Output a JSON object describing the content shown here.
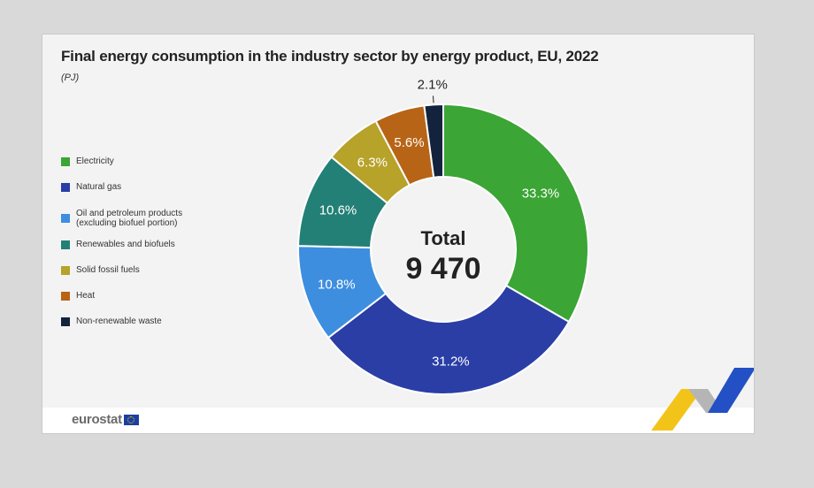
{
  "chart_data": {
    "type": "pie",
    "title": "Final energy consumption in the industry sector by energy product, EU, 2022",
    "subtitle": "(PJ)",
    "center_label": "Total",
    "center_value": "9 470",
    "categories": [
      "Electricity",
      "Natural gas",
      "Oil and petroleum products\n(excluding biofuel portion)",
      "Renewables and biofuels",
      "Solid fossil fuels",
      "Heat",
      "Non-renewable waste"
    ],
    "values": [
      33.3,
      31.2,
      10.8,
      10.6,
      6.3,
      5.6,
      2.1
    ],
    "value_labels": [
      "33.3%",
      "31.2%",
      "10.8%",
      "10.6%",
      "6.3%",
      "5.6%",
      "2.1%"
    ],
    "colors": [
      "#3ba535",
      "#2a3ea6",
      "#3e8ee0",
      "#238076",
      "#b7a22a",
      "#b86417",
      "#13233d"
    ],
    "legend_position": "left"
  },
  "branding": {
    "logo_text": "eurostat"
  }
}
